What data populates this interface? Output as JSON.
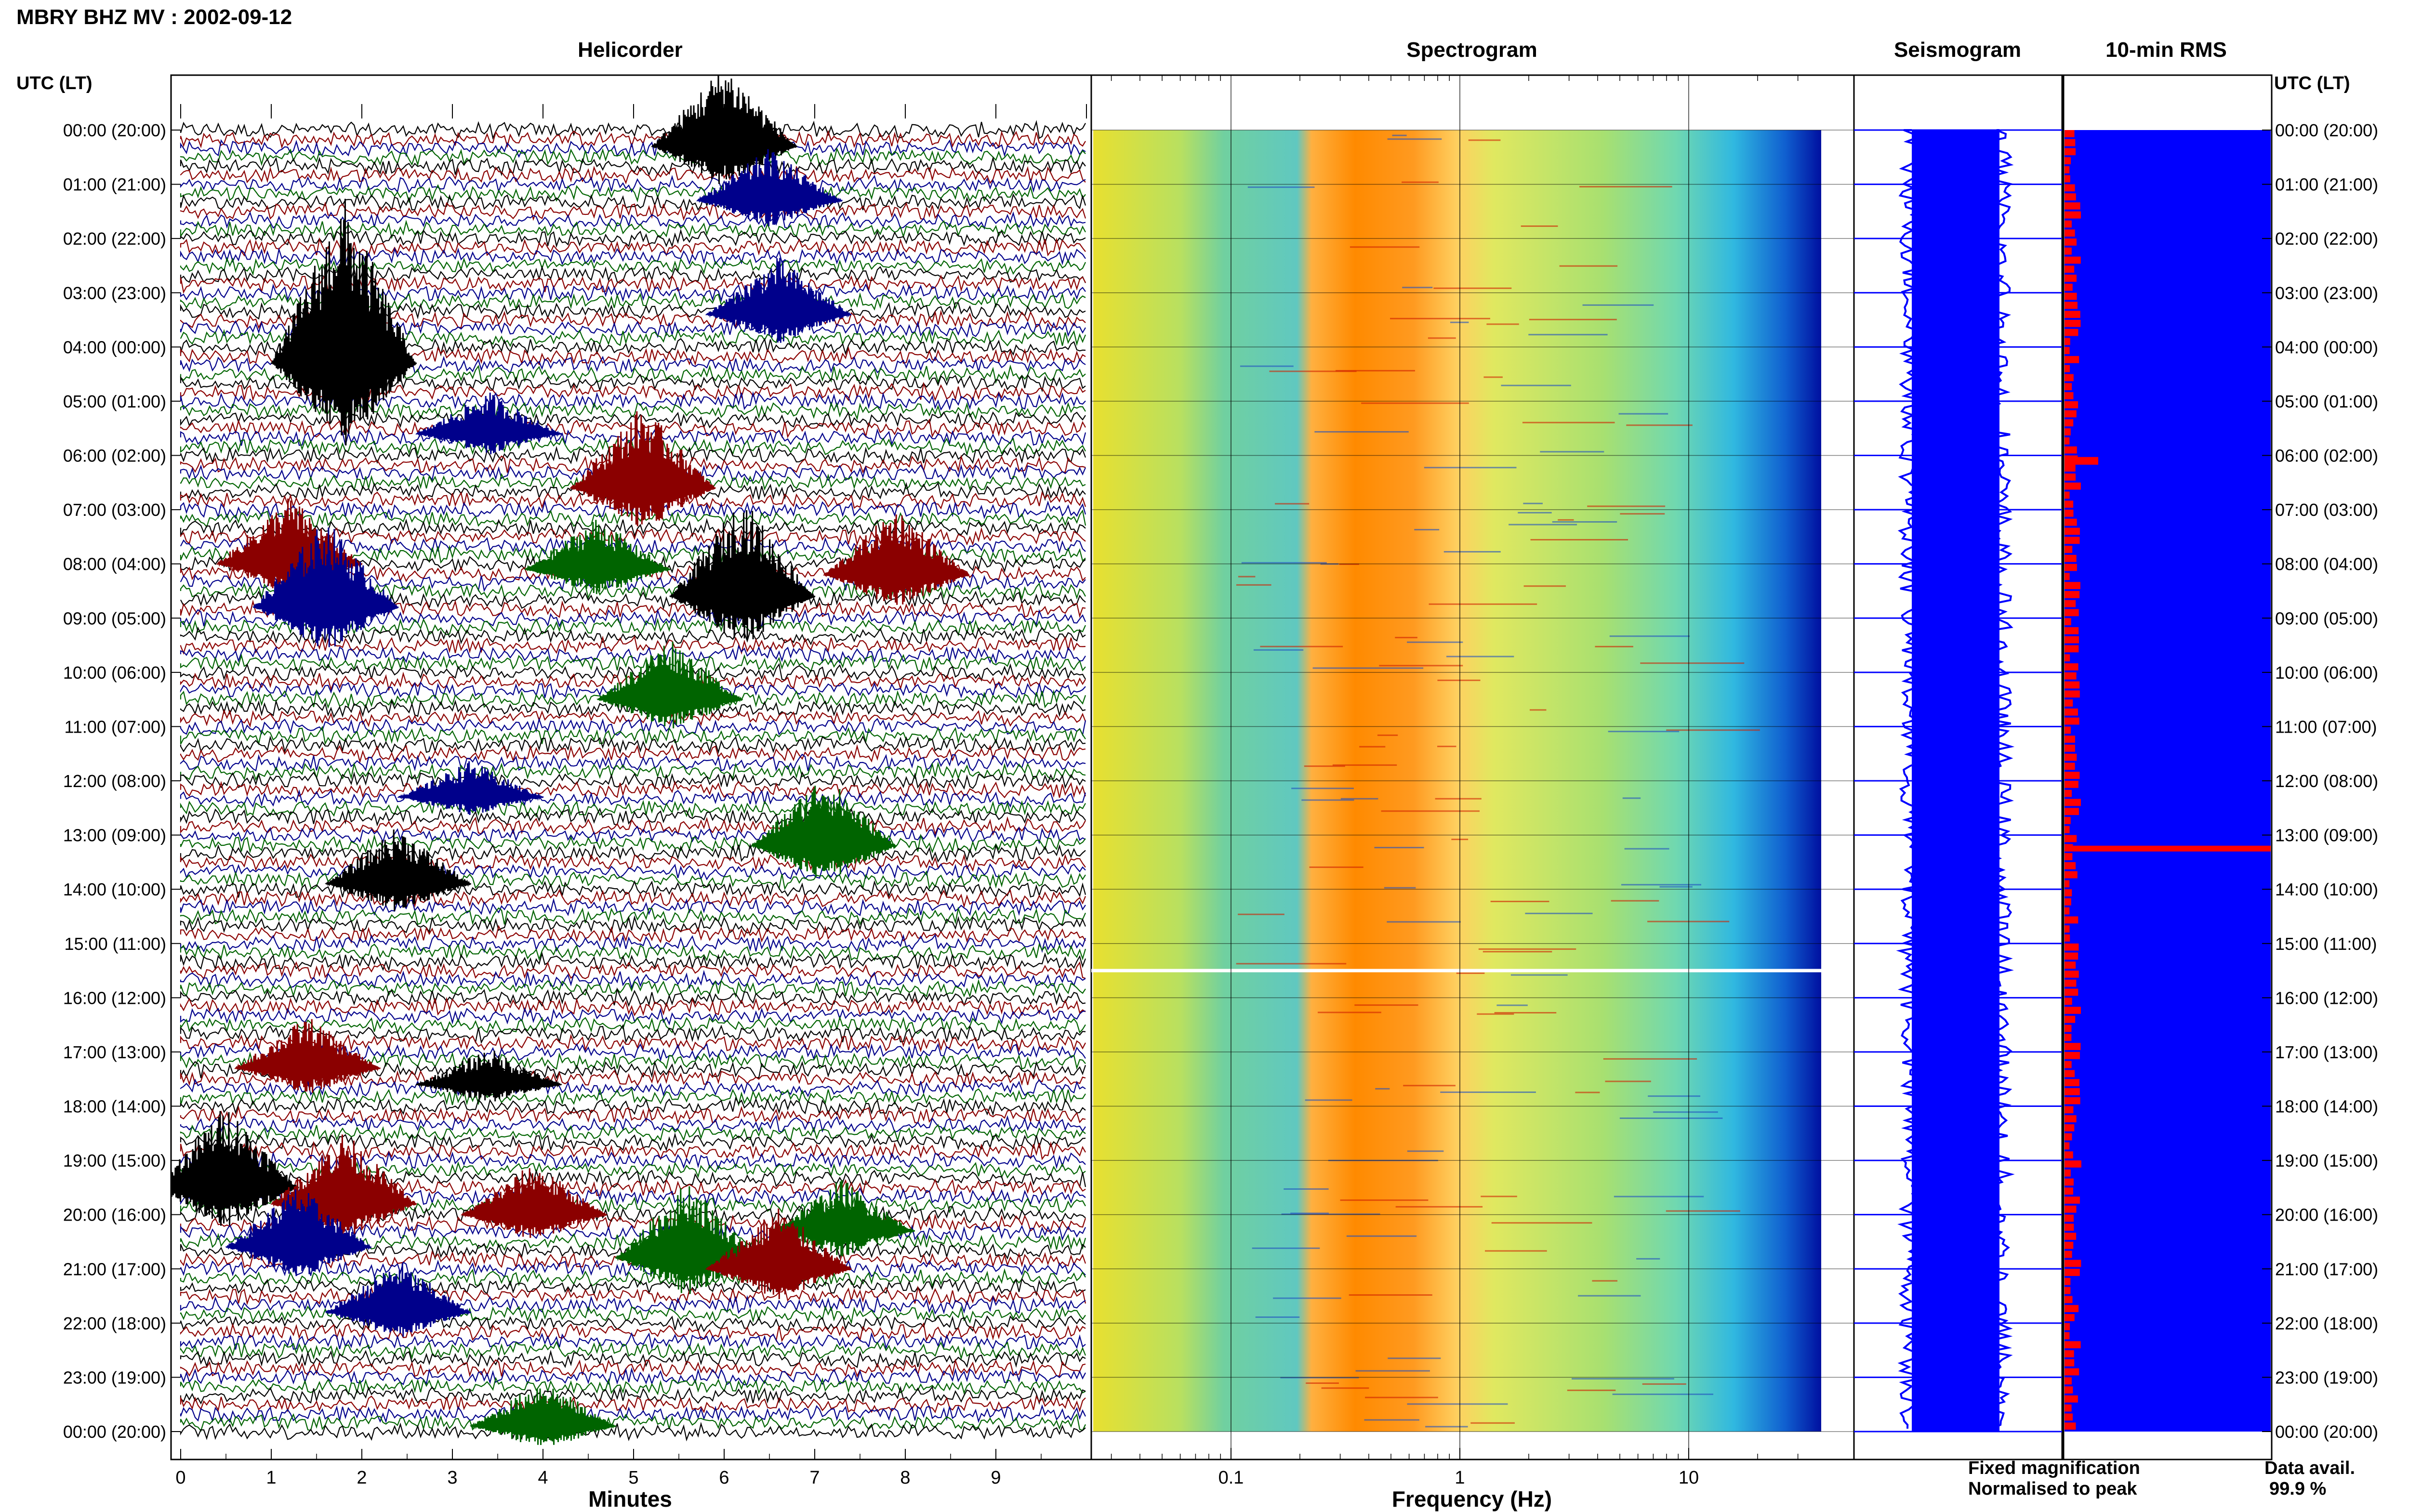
{
  "header": {
    "title": "MBRY BHZ MV : 2002-09-12"
  },
  "panels": {
    "helicorder": "Helicorder",
    "spectrogram": "Spectrogram",
    "seismogram": "Seismogram",
    "rms": "10-min RMS"
  },
  "axis": {
    "left_header": "UTC (LT)",
    "right_header": "UTC (LT)",
    "minutes_label": "Minutes",
    "frequency_label": "Frequency (Hz)"
  },
  "legend": {
    "fixed": "Fixed magnification",
    "normalised": "Normalised to peak",
    "fixed_color": "#0000ff",
    "normalised_color": "#ff0000"
  },
  "availability": {
    "label": "Data avail.",
    "value": "99.9 %"
  },
  "chart_data": {
    "type": "helicorder-spectrogram",
    "time_labels": [
      "00:00 (20:00)",
      "01:00 (21:00)",
      "02:00 (22:00)",
      "03:00 (23:00)",
      "04:00 (00:00)",
      "05:00 (01:00)",
      "06:00 (02:00)",
      "07:00 (03:00)",
      "08:00 (04:00)",
      "09:00 (05:00)",
      "10:00 (06:00)",
      "11:00 (07:00)",
      "12:00 (08:00)",
      "13:00 (09:00)",
      "14:00 (10:00)",
      "15:00 (11:00)",
      "16:00 (12:00)",
      "17:00 (13:00)",
      "18:00 (14:00)",
      "19:00 (15:00)",
      "20:00 (16:00)",
      "21:00 (17:00)",
      "22:00 (18:00)",
      "23:00 (19:00)",
      "00:00 (20:00)"
    ],
    "minute_ticks": [
      "0",
      "1",
      "2",
      "3",
      "4",
      "5",
      "6",
      "7",
      "8",
      "9"
    ],
    "frequency_ticks": [
      "0.1",
      "1",
      "10"
    ],
    "trace_colors": [
      "#000000",
      "#8b0000",
      "#00008b",
      "#006400"
    ],
    "events": [
      {
        "hour": 0.3,
        "minute": 6.0,
        "amp": 1.6,
        "color": "#000000"
      },
      {
        "hour": 1.3,
        "minute": 6.5,
        "amp": 1.0,
        "color": "#00008b"
      },
      {
        "hour": 3.4,
        "minute": 6.6,
        "amp": 1.1,
        "color": "#00008b"
      },
      {
        "hour": 4.3,
        "minute": 1.8,
        "amp": 3.2,
        "color": "#000000"
      },
      {
        "hour": 5.6,
        "minute": 3.4,
        "amp": 0.8,
        "color": "#00008b"
      },
      {
        "hour": 6.6,
        "minute": 5.1,
        "amp": 1.6,
        "color": "#8b0000"
      },
      {
        "hour": 8.0,
        "minute": 1.2,
        "amp": 1.3,
        "color": "#8b0000"
      },
      {
        "hour": 8.1,
        "minute": 4.6,
        "amp": 1.0,
        "color": "#006400"
      },
      {
        "hour": 8.2,
        "minute": 7.9,
        "amp": 1.3,
        "color": "#8b0000"
      },
      {
        "hour": 8.6,
        "minute": 6.2,
        "amp": 1.9,
        "color": "#000000"
      },
      {
        "hour": 8.8,
        "minute": 1.6,
        "amp": 1.7,
        "color": "#00008b"
      },
      {
        "hour": 10.5,
        "minute": 5.4,
        "amp": 1.2,
        "color": "#006400"
      },
      {
        "hour": 12.3,
        "minute": 3.2,
        "amp": 0.7,
        "color": "#00008b"
      },
      {
        "hour": 13.2,
        "minute": 7.1,
        "amp": 1.4,
        "color": "#006400"
      },
      {
        "hour": 13.9,
        "minute": 2.4,
        "amp": 1.1,
        "color": "#000000"
      },
      {
        "hour": 17.3,
        "minute": 1.4,
        "amp": 1.0,
        "color": "#8b0000"
      },
      {
        "hour": 17.6,
        "minute": 3.4,
        "amp": 0.7,
        "color": "#000000"
      },
      {
        "hour": 19.5,
        "minute": 0.5,
        "amp": 1.6,
        "color": "#000000"
      },
      {
        "hour": 19.8,
        "minute": 1.8,
        "amp": 1.4,
        "color": "#8b0000"
      },
      {
        "hour": 20.0,
        "minute": 3.9,
        "amp": 1.0,
        "color": "#8b0000"
      },
      {
        "hour": 20.3,
        "minute": 7.3,
        "amp": 1.0,
        "color": "#006400"
      },
      {
        "hour": 20.6,
        "minute": 1.3,
        "amp": 1.2,
        "color": "#00008b"
      },
      {
        "hour": 20.8,
        "minute": 5.6,
        "amp": 1.5,
        "color": "#006400"
      },
      {
        "hour": 21.0,
        "minute": 6.6,
        "amp": 1.2,
        "color": "#8b0000"
      },
      {
        "hour": 21.8,
        "minute": 2.4,
        "amp": 1.0,
        "color": "#00008b"
      },
      {
        "hour": 23.9,
        "minute": 4.0,
        "amp": 0.9,
        "color": "#006400"
      }
    ],
    "rms_spike_hour": 13.25,
    "gap_hour": 15.5
  }
}
